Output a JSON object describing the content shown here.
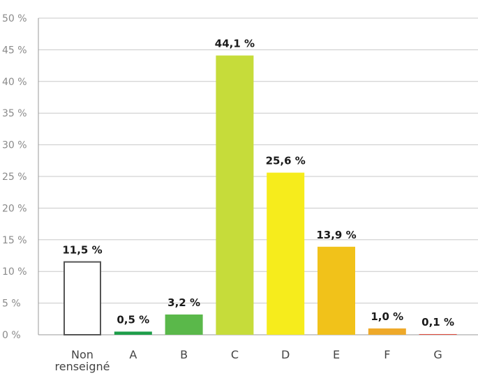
{
  "chart_data": {
    "type": "bar",
    "title": "",
    "xlabel": "",
    "ylabel": "",
    "ylim": [
      0,
      50
    ],
    "yticks": [
      0,
      5,
      10,
      15,
      20,
      25,
      30,
      35,
      40,
      45,
      50
    ],
    "ytick_labels": [
      "0 %",
      "5 %",
      "10 %",
      "15 %",
      "20 %",
      "25 %",
      "30 %",
      "35 %",
      "40 %",
      "45 %",
      "50 %"
    ],
    "grid": true,
    "categories": [
      [
        "Non",
        "renseigné"
      ],
      [
        "A"
      ],
      [
        "B"
      ],
      [
        "C"
      ],
      [
        "D"
      ],
      [
        "E"
      ],
      [
        "F"
      ],
      [
        "G"
      ]
    ],
    "values": [
      11.5,
      0.5,
      3.2,
      44.1,
      25.6,
      13.9,
      1.0,
      0.1
    ],
    "value_labels": [
      "11,5 %",
      "0,5 %",
      "3,2 %",
      "44,1 %",
      "25,6 %",
      "13,9 %",
      "1,0 %",
      "0,1 %"
    ],
    "colors": [
      "#ffffff",
      "#1e9e4a",
      "#5ab84a",
      "#c6dc3a",
      "#f6ec1c",
      "#f1c21a",
      "#eea92a",
      "#e03a2a"
    ],
    "outline_colors": [
      "#555555",
      null,
      null,
      null,
      null,
      null,
      null,
      null
    ]
  }
}
